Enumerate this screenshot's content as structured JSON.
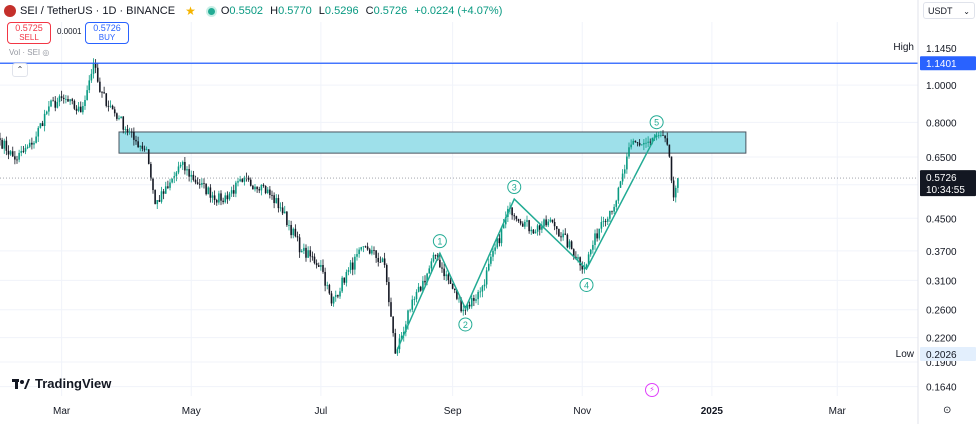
{
  "header": {
    "symbol": "SEI / TetherUS · 1D · BINANCE",
    "o_label": "O",
    "open": "0.5502",
    "h_label": "H",
    "high": "0.5770",
    "l_label": "L",
    "low": "0.5296",
    "c_label": "C",
    "close": "0.5726",
    "change": "+0.0224 (+4.07%)"
  },
  "trade": {
    "sell_price": "0.5725",
    "sell_label": "SELL",
    "spread": "0.0001",
    "buy_price": "0.5726",
    "buy_label": "BUY"
  },
  "volume_label": "Vol · SEI",
  "currency": "USDT",
  "watermark": "TradingView",
  "colors": {
    "up": "#089981",
    "down": "#131722",
    "zone": "#9ee0ea",
    "high_line": "#2962ff",
    "wave": "#22ab94"
  },
  "chart_data": {
    "type": "candlestick",
    "y_scale": "log",
    "ylim": [
      0.155,
      1.46
    ],
    "xlim": [
      "2024-02-01",
      "2025-04-08"
    ],
    "x_ticks": [
      {
        "date": "2024-03-01",
        "label": "Mar"
      },
      {
        "date": "2024-05-01",
        "label": "May"
      },
      {
        "date": "2024-07-01",
        "label": "Jul"
      },
      {
        "date": "2024-09-01",
        "label": "Sep"
      },
      {
        "date": "2024-11-01",
        "label": "Nov"
      },
      {
        "date": "2025-01-01",
        "label": "2025"
      },
      {
        "date": "2025-03-01",
        "label": "Mar"
      }
    ],
    "y_ticks": [
      "1.1450",
      "1.0000",
      "0.8000",
      "0.6500",
      "0.5500",
      "0.4500",
      "0.3700",
      "0.3100",
      "0.2600",
      "0.2200",
      "0.1900",
      "0.1640"
    ],
    "high": {
      "label": "High",
      "value": 1.1401,
      "value_label": "1.1401",
      "top_label": "1.1450"
    },
    "low": {
      "label": "Low",
      "value": 0.2026,
      "value_label": "0.2026"
    },
    "last_price": {
      "value": 0.5726,
      "label": "0.5726",
      "countdown": "10:34:55"
    },
    "zone": {
      "from": "2024-03-28",
      "to": "2025-01-17",
      "low": 0.665,
      "high": 0.755
    },
    "anchors": [
      {
        "date": "2024-02-01",
        "price": 0.72
      },
      {
        "date": "2024-02-08",
        "price": 0.64
      },
      {
        "date": "2024-02-16",
        "price": 0.7
      },
      {
        "date": "2024-02-24",
        "price": 0.88
      },
      {
        "date": "2024-03-02",
        "price": 0.92
      },
      {
        "date": "2024-03-10",
        "price": 0.85
      },
      {
        "date": "2024-03-16",
        "price": 1.14
      },
      {
        "date": "2024-03-19",
        "price": 0.96
      },
      {
        "date": "2024-03-28",
        "price": 0.82
      },
      {
        "date": "2024-04-04",
        "price": 0.72
      },
      {
        "date": "2024-04-10",
        "price": 0.68
      },
      {
        "date": "2024-04-14",
        "price": 0.49
      },
      {
        "date": "2024-04-20",
        "price": 0.54
      },
      {
        "date": "2024-04-26",
        "price": 0.62
      },
      {
        "date": "2024-05-05",
        "price": 0.55
      },
      {
        "date": "2024-05-15",
        "price": 0.5
      },
      {
        "date": "2024-05-25",
        "price": 0.56
      },
      {
        "date": "2024-06-03",
        "price": 0.55
      },
      {
        "date": "2024-06-12",
        "price": 0.48
      },
      {
        "date": "2024-06-22",
        "price": 0.37
      },
      {
        "date": "2024-07-01",
        "price": 0.34
      },
      {
        "date": "2024-07-06",
        "price": 0.27
      },
      {
        "date": "2024-07-14",
        "price": 0.33
      },
      {
        "date": "2024-07-22",
        "price": 0.38
      },
      {
        "date": "2024-07-31",
        "price": 0.34
      },
      {
        "date": "2024-08-05",
        "price": 0.2
      },
      {
        "date": "2024-08-12",
        "price": 0.26
      },
      {
        "date": "2024-08-24",
        "price": 0.36
      },
      {
        "date": "2024-09-06",
        "price": 0.26
      },
      {
        "date": "2024-09-14",
        "price": 0.29
      },
      {
        "date": "2024-09-28",
        "price": 0.48
      },
      {
        "date": "2024-10-08",
        "price": 0.42
      },
      {
        "date": "2024-10-18",
        "price": 0.44
      },
      {
        "date": "2024-11-02",
        "price": 0.335
      },
      {
        "date": "2024-11-10",
        "price": 0.44
      },
      {
        "date": "2024-11-17",
        "price": 0.5
      },
      {
        "date": "2024-11-24",
        "price": 0.7
      },
      {
        "date": "2024-12-03",
        "price": 0.71
      },
      {
        "date": "2024-12-07",
        "price": 0.74
      },
      {
        "date": "2024-12-11",
        "price": 0.7
      },
      {
        "date": "2024-12-14",
        "price": 0.51
      },
      {
        "date": "2024-12-16",
        "price": 0.5726
      }
    ],
    "waves": [
      {
        "date": "2024-08-06",
        "price": 0.205,
        "label": ""
      },
      {
        "date": "2024-08-26",
        "price": 0.365,
        "label": "1"
      },
      {
        "date": "2024-09-07",
        "price": 0.262,
        "label": "2"
      },
      {
        "date": "2024-09-30",
        "price": 0.505,
        "label": "3"
      },
      {
        "date": "2024-11-03",
        "price": 0.332,
        "label": "4"
      },
      {
        "date": "2024-12-06",
        "price": 0.745,
        "label": "5"
      }
    ]
  }
}
